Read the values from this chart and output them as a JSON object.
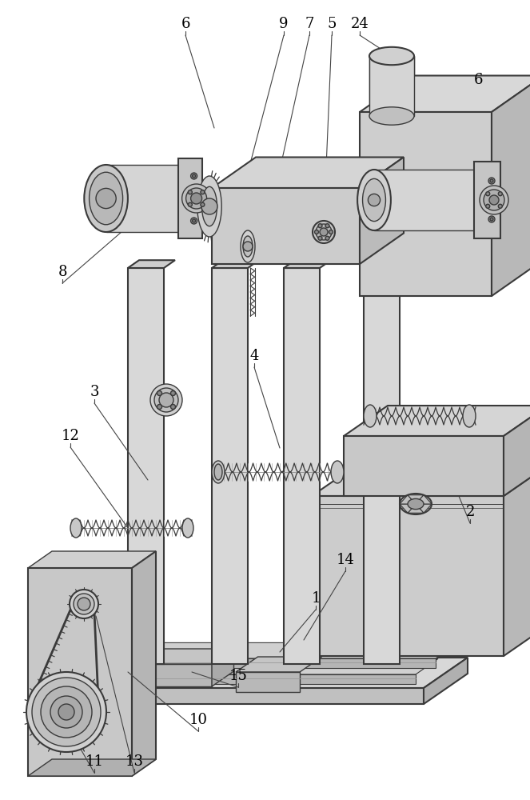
{
  "bg_color": "#ffffff",
  "lc": "#3a3a3a",
  "lw": 1.0,
  "tlw": 1.5,
  "figsize": [
    6.63,
    10.0
  ],
  "dpi": 100,
  "label_fontsize": 13,
  "labels": [
    [
      "6",
      232,
      30
    ],
    [
      "9",
      355,
      30
    ],
    [
      "7",
      387,
      30
    ],
    [
      "5",
      415,
      30
    ],
    [
      "24",
      450,
      30
    ],
    [
      "6",
      598,
      100
    ],
    [
      "8",
      78,
      340
    ],
    [
      "3",
      118,
      490
    ],
    [
      "12",
      88,
      545
    ],
    [
      "4",
      318,
      445
    ],
    [
      "2",
      588,
      640
    ],
    [
      "14",
      432,
      700
    ],
    [
      "1",
      395,
      748
    ],
    [
      "15",
      298,
      845
    ],
    [
      "10",
      248,
      900
    ],
    [
      "11",
      118,
      952
    ],
    [
      "13",
      168,
      952
    ]
  ]
}
